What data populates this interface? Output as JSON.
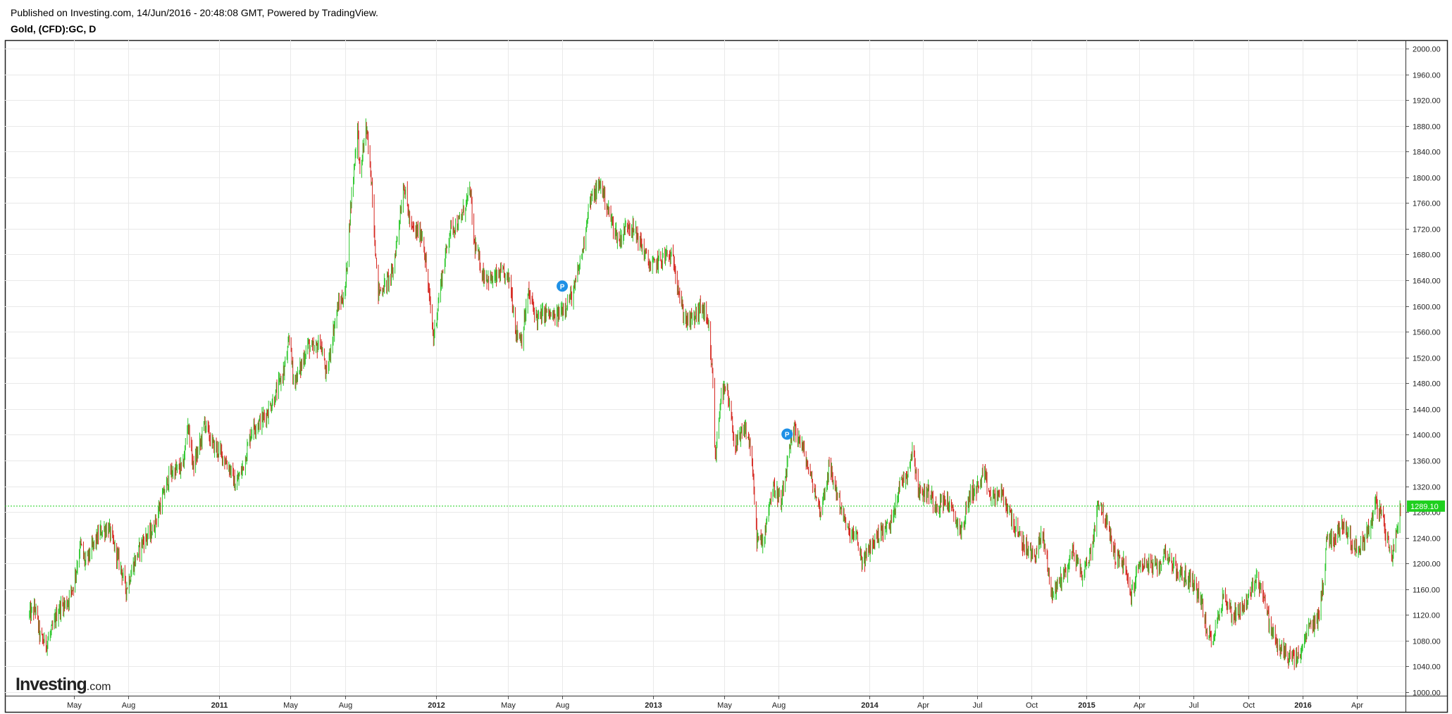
{
  "header": {
    "published": "Published on Investing.com, 14/Jun/2016 - 20:48:08 GMT, Powered by TradingView.",
    "symbol": "Gold, (CFD):GC, D"
  },
  "logo": {
    "main": "Investing",
    "domain": ".com"
  },
  "colors": {
    "up": "#29c729",
    "down": "#d5261f",
    "grid": "#e9e9e9",
    "priceLine": "#1ed01e",
    "marker": "#1e90e6",
    "frame": "#222222"
  },
  "chart_data": {
    "type": "candlestick",
    "interval": "D",
    "ylim": [
      1000,
      2000
    ],
    "grid": true,
    "y_ticks": [
      "1000.00",
      "1040.00",
      "1080.00",
      "1120.00",
      "1160.00",
      "1200.00",
      "1240.00",
      "1280.00",
      "1320.00",
      "1360.00",
      "1400.00",
      "1440.00",
      "1480.00",
      "1520.00",
      "1560.00",
      "1600.00",
      "1640.00",
      "1680.00",
      "1720.00",
      "1760.00",
      "1800.00",
      "1840.00",
      "1880.00",
      "1920.00",
      "1960.00",
      "2000.00"
    ],
    "x_ticks": [
      {
        "label": "May",
        "date": "2010-05-01",
        "bold": false
      },
      {
        "label": "Aug",
        "date": "2010-08-01",
        "bold": false
      },
      {
        "label": "2011",
        "date": "2011-01-01",
        "bold": true
      },
      {
        "label": "May",
        "date": "2011-05-01",
        "bold": false
      },
      {
        "label": "Aug",
        "date": "2011-08-01",
        "bold": false
      },
      {
        "label": "2012",
        "date": "2012-01-01",
        "bold": true
      },
      {
        "label": "May",
        "date": "2012-05-01",
        "bold": false
      },
      {
        "label": "Aug",
        "date": "2012-08-01",
        "bold": false
      },
      {
        "label": "2013",
        "date": "2013-01-01",
        "bold": true
      },
      {
        "label": "May",
        "date": "2013-05-01",
        "bold": false
      },
      {
        "label": "Aug",
        "date": "2013-08-01",
        "bold": false
      },
      {
        "label": "2014",
        "date": "2014-01-01",
        "bold": true
      },
      {
        "label": "Apr",
        "date": "2014-04-01",
        "bold": false
      },
      {
        "label": "Jul",
        "date": "2014-07-01",
        "bold": false
      },
      {
        "label": "Oct",
        "date": "2014-10-01",
        "bold": false
      },
      {
        "label": "2015",
        "date": "2015-01-01",
        "bold": true
      },
      {
        "label": "Apr",
        "date": "2015-04-01",
        "bold": false
      },
      {
        "label": "Jul",
        "date": "2015-07-01",
        "bold": false
      },
      {
        "label": "Oct",
        "date": "2015-10-01",
        "bold": false
      },
      {
        "label": "2016",
        "date": "2016-01-01",
        "bold": true
      },
      {
        "label": "Apr",
        "date": "2016-04-01",
        "bold": false
      }
    ],
    "last_price": 1289.1,
    "last_price_label": "1289.10",
    "markers": [
      {
        "label": "P",
        "date": "2012-08-01",
        "value": 1631
      },
      {
        "label": "P",
        "date": "2013-08-15",
        "value": 1401
      }
    ],
    "series": [
      {
        "path": [
          [
            "2010-02-15",
            1120
          ],
          [
            "2010-02-25",
            1130
          ],
          [
            "2010-03-05",
            1085
          ],
          [
            "2010-03-15",
            1075
          ],
          [
            "2010-03-25",
            1095
          ],
          [
            "2010-04-05",
            1130
          ],
          [
            "2010-04-20",
            1140
          ],
          [
            "2010-05-01",
            1170
          ],
          [
            "2010-05-12",
            1230
          ],
          [
            "2010-05-20",
            1200
          ],
          [
            "2010-06-01",
            1225
          ],
          [
            "2010-06-15",
            1250
          ],
          [
            "2010-06-28",
            1255
          ],
          [
            "2010-07-10",
            1220
          ],
          [
            "2010-07-20",
            1190
          ],
          [
            "2010-07-28",
            1160
          ],
          [
            "2010-08-10",
            1200
          ],
          [
            "2010-08-25",
            1235
          ],
          [
            "2010-09-10",
            1250
          ],
          [
            "2010-09-25",
            1295
          ],
          [
            "2010-10-10",
            1340
          ],
          [
            "2010-10-20",
            1345
          ],
          [
            "2010-11-01",
            1350
          ],
          [
            "2010-11-09",
            1420
          ],
          [
            "2010-11-18",
            1350
          ],
          [
            "2010-12-01",
            1390
          ],
          [
            "2010-12-07",
            1420
          ],
          [
            "2010-12-20",
            1385
          ],
          [
            "2011-01-05",
            1370
          ],
          [
            "2011-01-20",
            1345
          ],
          [
            "2011-01-28",
            1320
          ],
          [
            "2011-02-10",
            1350
          ],
          [
            "2011-02-25",
            1410
          ],
          [
            "2011-03-10",
            1420
          ],
          [
            "2011-03-20",
            1430
          ],
          [
            "2011-04-05",
            1460
          ],
          [
            "2011-04-20",
            1500
          ],
          [
            "2011-05-01",
            1555
          ],
          [
            "2011-05-05",
            1485
          ],
          [
            "2011-05-15",
            1495
          ],
          [
            "2011-05-30",
            1540
          ],
          [
            "2011-06-10",
            1530
          ],
          [
            "2011-06-20",
            1545
          ],
          [
            "2011-07-01",
            1490
          ],
          [
            "2011-07-10",
            1550
          ],
          [
            "2011-07-20",
            1600
          ],
          [
            "2011-08-01",
            1620
          ],
          [
            "2011-08-10",
            1750
          ],
          [
            "2011-08-22",
            1880
          ],
          [
            "2011-08-26",
            1800
          ],
          [
            "2011-09-05",
            1880
          ],
          [
            "2011-09-15",
            1790
          ],
          [
            "2011-09-25",
            1620
          ],
          [
            "2011-10-05",
            1630
          ],
          [
            "2011-10-20",
            1650
          ],
          [
            "2011-11-08",
            1790
          ],
          [
            "2011-11-20",
            1720
          ],
          [
            "2011-12-10",
            1710
          ],
          [
            "2011-12-28",
            1550
          ],
          [
            "2012-01-10",
            1640
          ],
          [
            "2012-01-25",
            1720
          ],
          [
            "2012-02-10",
            1730
          ],
          [
            "2012-02-28",
            1780
          ],
          [
            "2012-03-05",
            1700
          ],
          [
            "2012-03-20",
            1650
          ],
          [
            "2012-04-05",
            1640
          ],
          [
            "2012-04-20",
            1650
          ],
          [
            "2012-05-05",
            1640
          ],
          [
            "2012-05-15",
            1560
          ],
          [
            "2012-05-25",
            1550
          ],
          [
            "2012-06-05",
            1620
          ],
          [
            "2012-06-20",
            1580
          ],
          [
            "2012-07-05",
            1590
          ],
          [
            "2012-07-20",
            1580
          ],
          [
            "2012-08-05",
            1600
          ],
          [
            "2012-08-20",
            1620
          ],
          [
            "2012-09-05",
            1690
          ],
          [
            "2012-09-15",
            1760
          ],
          [
            "2012-10-05",
            1790
          ],
          [
            "2012-10-20",
            1740
          ],
          [
            "2012-11-05",
            1700
          ],
          [
            "2012-11-20",
            1730
          ],
          [
            "2012-12-05",
            1710
          ],
          [
            "2012-12-28",
            1660
          ],
          [
            "2013-01-10",
            1670
          ],
          [
            "2013-01-25",
            1680
          ],
          [
            "2013-02-05",
            1670
          ],
          [
            "2013-02-20",
            1590
          ],
          [
            "2013-03-01",
            1575
          ],
          [
            "2013-03-10",
            1580
          ],
          [
            "2013-03-25",
            1600
          ],
          [
            "2013-04-05",
            1560
          ],
          [
            "2013-04-12",
            1480
          ],
          [
            "2013-04-16",
            1360
          ],
          [
            "2013-04-25",
            1460
          ],
          [
            "2013-05-05",
            1470
          ],
          [
            "2013-05-20",
            1380
          ],
          [
            "2013-06-05",
            1410
          ],
          [
            "2013-06-15",
            1380
          ],
          [
            "2013-06-25",
            1240
          ],
          [
            "2013-07-05",
            1230
          ],
          [
            "2013-07-15",
            1290
          ],
          [
            "2013-07-25",
            1320
          ],
          [
            "2013-08-05",
            1290
          ],
          [
            "2013-08-20",
            1380
          ],
          [
            "2013-08-28",
            1410
          ],
          [
            "2013-09-10",
            1380
          ],
          [
            "2013-09-25",
            1330
          ],
          [
            "2013-10-10",
            1280
          ],
          [
            "2013-10-25",
            1350
          ],
          [
            "2013-11-10",
            1300
          ],
          [
            "2013-11-25",
            1250
          ],
          [
            "2013-12-10",
            1240
          ],
          [
            "2013-12-20",
            1200
          ],
          [
            "2014-01-05",
            1230
          ],
          [
            "2014-01-20",
            1250
          ],
          [
            "2014-02-05",
            1260
          ],
          [
            "2014-02-20",
            1320
          ],
          [
            "2014-03-05",
            1340
          ],
          [
            "2014-03-15",
            1380
          ],
          [
            "2014-03-25",
            1310
          ],
          [
            "2014-04-10",
            1310
          ],
          [
            "2014-04-25",
            1290
          ],
          [
            "2014-05-10",
            1300
          ],
          [
            "2014-05-25",
            1270
          ],
          [
            "2014-06-05",
            1250
          ],
          [
            "2014-06-20",
            1310
          ],
          [
            "2014-07-05",
            1320
          ],
          [
            "2014-07-12",
            1340
          ],
          [
            "2014-07-25",
            1300
          ],
          [
            "2014-08-10",
            1310
          ],
          [
            "2014-08-25",
            1280
          ],
          [
            "2014-09-10",
            1240
          ],
          [
            "2014-09-25",
            1220
          ],
          [
            "2014-10-05",
            1210
          ],
          [
            "2014-10-20",
            1245
          ],
          [
            "2014-11-05",
            1150
          ],
          [
            "2014-11-15",
            1170
          ],
          [
            "2014-11-28",
            1190
          ],
          [
            "2014-12-10",
            1220
          ],
          [
            "2014-12-25",
            1180
          ],
          [
            "2015-01-10",
            1220
          ],
          [
            "2015-01-22",
            1300
          ],
          [
            "2015-02-05",
            1260
          ],
          [
            "2015-02-20",
            1210
          ],
          [
            "2015-03-05",
            1200
          ],
          [
            "2015-03-18",
            1150
          ],
          [
            "2015-04-01",
            1200
          ],
          [
            "2015-04-15",
            1200
          ],
          [
            "2015-05-01",
            1190
          ],
          [
            "2015-05-15",
            1220
          ],
          [
            "2015-06-01",
            1190
          ],
          [
            "2015-06-15",
            1180
          ],
          [
            "2015-07-01",
            1170
          ],
          [
            "2015-07-15",
            1140
          ],
          [
            "2015-07-24",
            1085
          ],
          [
            "2015-08-05",
            1090
          ],
          [
            "2015-08-20",
            1150
          ],
          [
            "2015-09-05",
            1120
          ],
          [
            "2015-09-20",
            1130
          ],
          [
            "2015-10-05",
            1150
          ],
          [
            "2015-10-14",
            1180
          ],
          [
            "2015-10-25",
            1160
          ],
          [
            "2015-11-05",
            1110
          ],
          [
            "2015-11-20",
            1070
          ],
          [
            "2015-12-05",
            1060
          ],
          [
            "2015-12-17",
            1050
          ],
          [
            "2015-12-30",
            1060
          ],
          [
            "2016-01-10",
            1100
          ],
          [
            "2016-01-25",
            1110
          ],
          [
            "2016-02-05",
            1170
          ],
          [
            "2016-02-11",
            1240
          ],
          [
            "2016-02-25",
            1240
          ],
          [
            "2016-03-10",
            1265
          ],
          [
            "2016-03-20",
            1240
          ],
          [
            "2016-04-01",
            1220
          ],
          [
            "2016-04-15",
            1240
          ],
          [
            "2016-04-28",
            1270
          ],
          [
            "2016-05-03",
            1295
          ],
          [
            "2016-05-15",
            1270
          ],
          [
            "2016-05-25",
            1225
          ],
          [
            "2016-05-31",
            1215
          ],
          [
            "2016-06-07",
            1245
          ],
          [
            "2016-06-14",
            1289
          ]
        ]
      }
    ]
  }
}
